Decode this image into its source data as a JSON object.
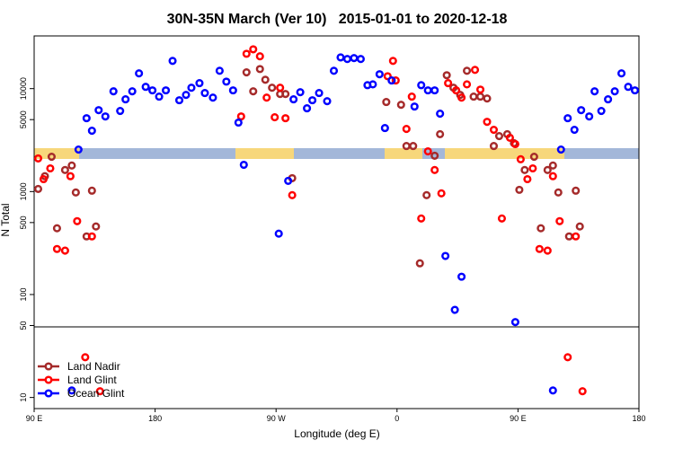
{
  "chart_data": {
    "type": "scatter",
    "title": "30N-35N March (Ver 10)   2015-01-01 to 2020-12-18",
    "xlabel": "Longitude (deg E)",
    "ylabel": "N Total",
    "log_y": true,
    "legend": "lower left",
    "xlim": [
      90,
      540
    ],
    "xticks": [
      {
        "value": 90,
        "label": "90 E"
      },
      {
        "value": 180,
        "label": "180"
      },
      {
        "value": 270,
        "label": "90 W"
      },
      {
        "value": 360,
        "label": "0"
      },
      {
        "value": 450,
        "label": "90 E"
      },
      {
        "value": 540,
        "label": "180"
      }
    ],
    "ylim": [
      7.8,
      32500
    ],
    "yticks": [
      10,
      50,
      100,
      500,
      1000,
      5000,
      10000
    ],
    "series": [
      {
        "name": "Land Nadir",
        "color": "#a52a2a",
        "x": [
          93,
          98,
          103,
          107,
          113,
          118,
          121,
          129,
          133,
          136,
          248,
          253,
          258,
          262,
          267,
          273,
          277,
          282,
          352,
          363,
          367,
          372,
          377,
          382,
          388,
          392,
          397,
          402,
          407,
          412,
          417,
          422,
          427,
          432,
          436,
          442,
          447,
          451,
          455,
          462,
          467,
          472,
          476,
          480,
          488,
          493,
          496
        ],
        "values": [
          1060,
          1410,
          2180,
          440,
          1620,
          1790,
          980,
          367,
          1020,
          458,
          14400,
          9420,
          15500,
          12200,
          10200,
          8870,
          8870,
          1350,
          7410,
          6970,
          2770,
          2770,
          201,
          923,
          2230,
          3610,
          13500,
          10200,
          8690,
          14900,
          8360,
          8360,
          8020,
          2770,
          3460,
          3610,
          2950,
          1040,
          1620,
          2180,
          440,
          1620,
          1790,
          980,
          367,
          1020,
          458
        ]
      },
      {
        "name": "Land Glint",
        "color": "#ff0000",
        "x": [
          93,
          97,
          102,
          107,
          113,
          117,
          122,
          128,
          133,
          139,
          244,
          248,
          253,
          258,
          263,
          269,
          273,
          277,
          282,
          353,
          357,
          359,
          367,
          371,
          378,
          383,
          388,
          393,
          398,
          404,
          408,
          412,
          418,
          422,
          427,
          432,
          438,
          444,
          448,
          452,
          457,
          461,
          466,
          472,
          476,
          481,
          487,
          493,
          498
        ],
        "values": [
          2100,
          1320,
          1680,
          277,
          267,
          1410,
          516,
          24.6,
          367,
          11.5,
          5370,
          21800,
          24100,
          20600,
          8180,
          5270,
          10200,
          5160,
          923,
          13200,
          18600,
          12000,
          4060,
          8360,
          548,
          2460,
          1620,
          961,
          11300,
          9620,
          8180,
          11000,
          15200,
          9790,
          4760,
          3980,
          548,
          3330,
          2890,
          2060,
          1320,
          1680,
          277,
          267,
          1410,
          516,
          24.6,
          367,
          11.5
        ]
      },
      {
        "name": "Ocean Glint",
        "color": "#0000ff",
        "x": [
          118,
          123,
          129,
          133,
          138,
          143,
          149,
          154,
          158,
          163,
          168,
          173,
          178,
          183,
          188,
          193,
          198,
          203,
          207,
          213,
          217,
          223,
          228,
          233,
          238,
          242,
          246,
          272,
          279,
          283,
          288,
          293,
          297,
          302,
          308,
          313,
          318,
          323,
          328,
          333,
          338,
          342,
          347,
          351,
          356,
          373,
          378,
          383,
          388,
          392,
          396,
          403,
          408,
          448,
          476,
          482,
          487,
          492,
          497,
          503,
          507,
          512,
          517,
          522,
          527,
          532,
          537
        ],
        "values": [
          11.7,
          2560,
          5160,
          3900,
          6180,
          5370,
          9420,
          6070,
          7870,
          9420,
          14060,
          10400,
          9620,
          8360,
          9620,
          18600,
          7710,
          8690,
          10200,
          11300,
          9060,
          8180,
          14900,
          11700,
          9620,
          4680,
          1820,
          390,
          1270,
          7870,
          9230,
          6440,
          7710,
          9060,
          7550,
          14900,
          20100,
          19400,
          19800,
          19400,
          10800,
          11000,
          13800,
          4140,
          12000,
          6700,
          10800,
          9620,
          9620,
          5710,
          237,
          71,
          149,
          54,
          11.7,
          2560,
          5160,
          3980,
          6180,
          5370,
          9420,
          6070,
          7870,
          9420,
          14060,
          10400,
          9620
        ]
      }
    ]
  }
}
